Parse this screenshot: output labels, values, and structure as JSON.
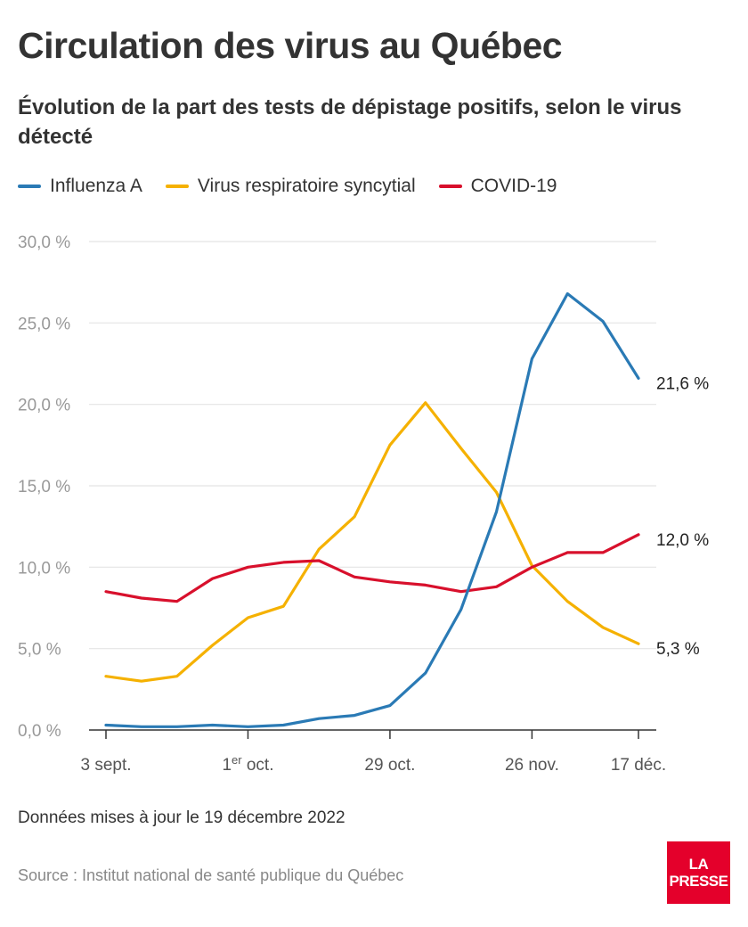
{
  "header": {
    "title": "Circulation des virus au Québec",
    "subtitle": "Évolution de la part des tests de dépistage positifs, selon le virus détecté"
  },
  "colors": {
    "influenza": "#2a7ab5",
    "vrs": "#f5b100",
    "covid": "#d8102c",
    "grid": "#e4e4e4",
    "axis": "#333333",
    "tick_text": "#999999"
  },
  "chart_data": {
    "type": "line",
    "title": "Évolution de la part des tests de dépistage positifs, selon le virus détecté",
    "xlabel": "",
    "ylabel": "",
    "ylim": [
      0,
      30
    ],
    "y_ticks": [
      "0,0 %",
      "5,0 %",
      "10,0 %",
      "15,0 %",
      "20,0 %",
      "25,0 %",
      "30,0 %"
    ],
    "y_tick_values": [
      0,
      5,
      10,
      15,
      20,
      25,
      30
    ],
    "x_ticks": [
      {
        "index": 0,
        "label": "3 sept.",
        "sup": ""
      },
      {
        "index": 4,
        "label": "1",
        "sup": "er",
        "suffix": " oct."
      },
      {
        "index": 8,
        "label": "29 oct.",
        "sup": ""
      },
      {
        "index": 12,
        "label": "26 nov.",
        "sup": ""
      },
      {
        "index": 15,
        "label": "17 déc.",
        "sup": ""
      }
    ],
    "grid": true,
    "legend_position": "top-left",
    "series": [
      {
        "name": "Influenza A",
        "color_key": "influenza",
        "values": [
          0.3,
          0.2,
          0.2,
          0.3,
          0.2,
          0.3,
          0.7,
          0.9,
          1.5,
          3.5,
          7.4,
          13.4,
          22.8,
          26.8,
          25.1,
          21.6
        ],
        "end_label": "21,6 %"
      },
      {
        "name": "Virus respiratoire syncytial",
        "color_key": "vrs",
        "values": [
          3.3,
          3.0,
          3.3,
          5.2,
          6.9,
          7.6,
          11.1,
          13.1,
          17.5,
          20.1,
          17.3,
          14.6,
          10.1,
          7.9,
          6.3,
          5.3
        ],
        "end_label": "5,3 %"
      },
      {
        "name": "COVID-19",
        "color_key": "covid",
        "values": [
          8.5,
          8.1,
          7.9,
          9.3,
          10.0,
          10.3,
          10.4,
          9.4,
          9.1,
          8.9,
          8.5,
          8.8,
          10.0,
          10.9,
          10.9,
          12.0
        ],
        "end_label": "12,0 %"
      }
    ]
  },
  "footer": {
    "note": "Données mises à jour le 19 décembre 2022",
    "source": "Source : Institut national de santé publique du Québec",
    "logo_line1": "LA",
    "logo_line2": "PRESSE"
  }
}
